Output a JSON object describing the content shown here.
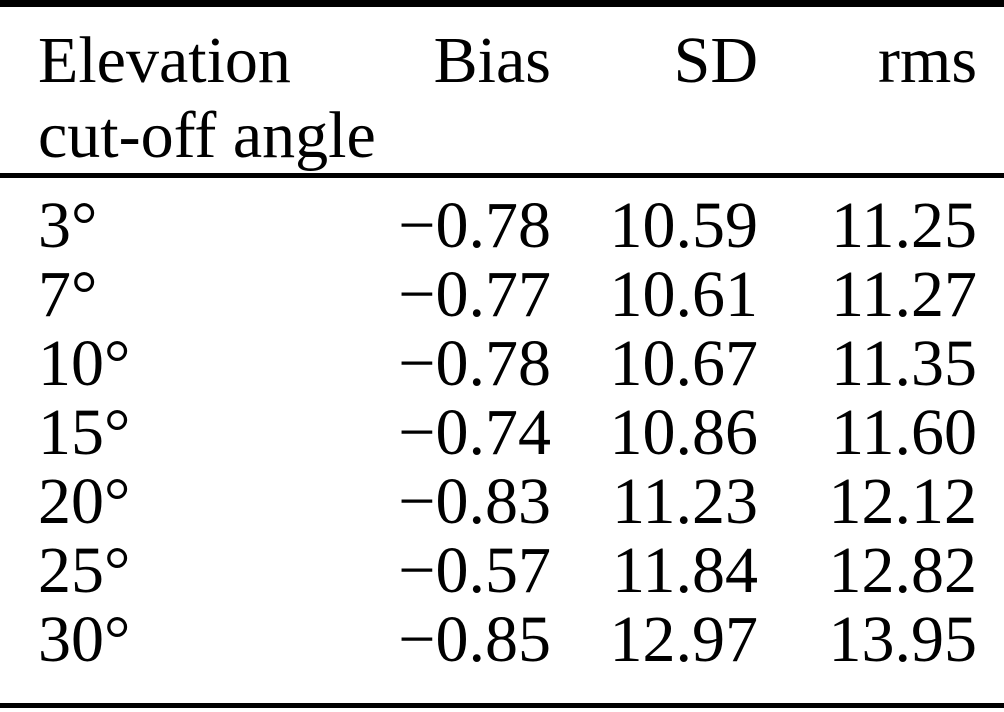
{
  "page": {
    "background_color": "#ffffff",
    "rule_color": "#000000",
    "text_color": "#000000"
  },
  "table": {
    "header": {
      "col1_line1": "Elevation",
      "col1_line2": "cut-off angle",
      "col2": "Bias",
      "col3": "SD",
      "col4": "rms"
    },
    "rows": [
      {
        "angle": "3°",
        "bias": "−0.78",
        "sd": "10.59",
        "rms": "11.25"
      },
      {
        "angle": "7°",
        "bias": "−0.77",
        "sd": "10.61",
        "rms": "11.27"
      },
      {
        "angle": "10°",
        "bias": "−0.78",
        "sd": "10.67",
        "rms": "11.35"
      },
      {
        "angle": "15°",
        "bias": "−0.74",
        "sd": "10.86",
        "rms": "11.60"
      },
      {
        "angle": "20°",
        "bias": "−0.83",
        "sd": "11.23",
        "rms": "12.12"
      },
      {
        "angle": "25°",
        "bias": "−0.57",
        "sd": "11.84",
        "rms": "12.82"
      },
      {
        "angle": "30°",
        "bias": "−0.85",
        "sd": "12.97",
        "rms": "13.95"
      }
    ]
  },
  "chart_data": {
    "type": "table",
    "columns": [
      "Elevation cut-off angle",
      "Bias",
      "SD",
      "rms"
    ],
    "rows": [
      [
        "3°",
        -0.78,
        10.59,
        11.25
      ],
      [
        "7°",
        -0.77,
        10.61,
        11.27
      ],
      [
        "10°",
        -0.78,
        10.67,
        11.35
      ],
      [
        "15°",
        -0.74,
        10.86,
        11.6
      ],
      [
        "20°",
        -0.83,
        11.23,
        12.12
      ],
      [
        "25°",
        -0.57,
        11.84,
        12.82
      ],
      [
        "30°",
        -0.85,
        12.97,
        13.95
      ]
    ]
  }
}
